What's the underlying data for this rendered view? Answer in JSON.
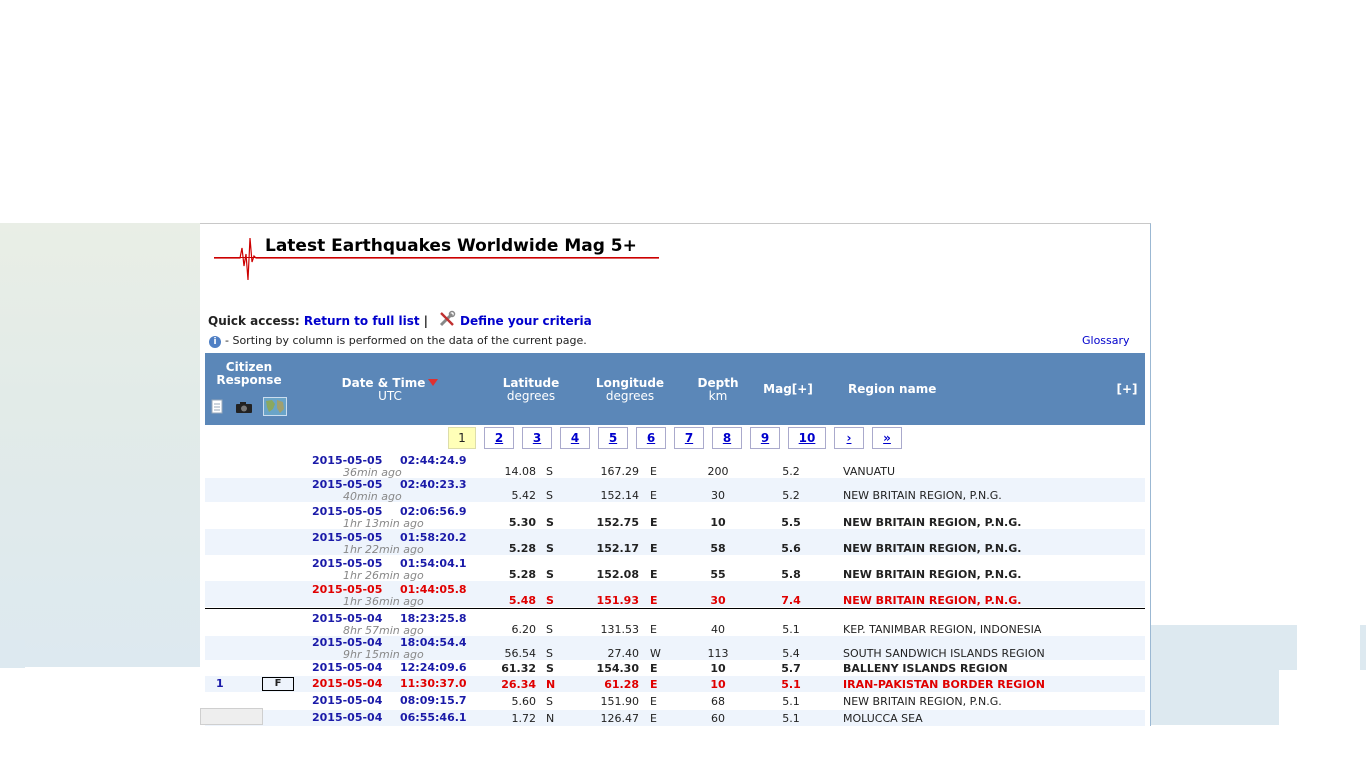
{
  "header": {
    "title": "Latest Earthquakes Worldwide Mag 5+",
    "quick_access_label": "Quick access:",
    "return_link": "Return to full list",
    "separator": "|",
    "criteria_link": "Define your criteria",
    "info_text": "- Sorting by column is performed on the data of the current page.",
    "glossary": "Glossary"
  },
  "table_header": {
    "citizen": "Citizen",
    "response": "Response",
    "datetime": "Date & Time",
    "utc": "UTC",
    "latitude": "Latitude",
    "lat_unit": "degrees",
    "longitude": "Longitude",
    "lon_unit": "degrees",
    "depth": "Depth",
    "depth_unit": "km",
    "mag": "Mag[+]",
    "region": "Region name",
    "more": "[+]"
  },
  "icons": [
    "document-icon",
    "camera-icon",
    "map-icon",
    "wrench-icon",
    "info-icon",
    "sort-desc-icon"
  ],
  "pager": [
    "1",
    "2",
    "3",
    "4",
    "5",
    "6",
    "7",
    "8",
    "9",
    "10",
    "›",
    "»"
  ],
  "rows": [
    {
      "date": "2015-05-05",
      "time": "02:44:24.9",
      "ago": "36min ago",
      "lat": "14.08",
      "ns": "S",
      "lon": "167.29",
      "ew": "E",
      "depth": "200",
      "mag": "5.2",
      "region": "VANUATU",
      "style": "normal"
    },
    {
      "date": "2015-05-05",
      "time": "02:40:23.3",
      "ago": "40min ago",
      "lat": "5.42",
      "ns": "S",
      "lon": "152.14",
      "ew": "E",
      "depth": "30",
      "mag": "5.2",
      "region": "NEW BRITAIN REGION, P.N.G.",
      "style": "normal"
    },
    {
      "date": "2015-05-05",
      "time": "02:06:56.9",
      "ago": "1hr 13min ago",
      "lat": "5.30",
      "ns": "S",
      "lon": "152.75",
      "ew": "E",
      "depth": "10",
      "mag": "5.5",
      "region": "NEW BRITAIN REGION, P.N.G.",
      "style": "bold"
    },
    {
      "date": "2015-05-05",
      "time": "01:58:20.2",
      "ago": "1hr 22min ago",
      "lat": "5.28",
      "ns": "S",
      "lon": "152.17",
      "ew": "E",
      "depth": "58",
      "mag": "5.6",
      "region": "NEW BRITAIN REGION, P.N.G.",
      "style": "bold"
    },
    {
      "date": "2015-05-05",
      "time": "01:54:04.1",
      "ago": "1hr 26min ago",
      "lat": "5.28",
      "ns": "S",
      "lon": "152.08",
      "ew": "E",
      "depth": "55",
      "mag": "5.8",
      "region": "NEW BRITAIN REGION, P.N.G.",
      "style": "bold"
    },
    {
      "date": "2015-05-05",
      "time": "01:44:05.8",
      "ago": "1hr 36min ago",
      "lat": "5.48",
      "ns": "S",
      "lon": "151.93",
      "ew": "E",
      "depth": "30",
      "mag": "7.4",
      "region": "NEW BRITAIN REGION, P.N.G.",
      "style": "red"
    },
    {
      "date": "2015-05-04",
      "time": "18:23:25.8",
      "ago": "8hr 57min ago",
      "lat": "6.20",
      "ns": "S",
      "lon": "131.53",
      "ew": "E",
      "depth": "40",
      "mag": "5.1",
      "region": "KEP. TANIMBAR REGION, INDONESIA",
      "style": "normal"
    },
    {
      "date": "2015-05-04",
      "time": "18:04:54.4",
      "ago": "9hr 15min ago",
      "lat": "56.54",
      "ns": "S",
      "lon": "27.40",
      "ew": "W",
      "depth": "113",
      "mag": "5.4",
      "region": "SOUTH SANDWICH ISLANDS REGION",
      "style": "normal"
    },
    {
      "date": "2015-05-04",
      "time": "12:24:09.6",
      "ago": "",
      "lat": "61.32",
      "ns": "S",
      "lon": "154.30",
      "ew": "E",
      "depth": "10",
      "mag": "5.7",
      "region": "BALLENY ISLANDS REGION",
      "style": "bold"
    },
    {
      "date": "2015-05-04",
      "time": "11:30:37.0",
      "ago": "",
      "lat": "26.34",
      "ns": "N",
      "lon": "61.28",
      "ew": "E",
      "depth": "10",
      "mag": "5.1",
      "region": "IRAN-PAKISTAN BORDER REGION",
      "style": "red",
      "citizen_count": "1",
      "citizen_flag": "F"
    },
    {
      "date": "2015-05-04",
      "time": "08:09:15.7",
      "ago": "",
      "lat": "5.60",
      "ns": "S",
      "lon": "151.90",
      "ew": "E",
      "depth": "68",
      "mag": "5.1",
      "region": "NEW BRITAIN REGION, P.N.G.",
      "style": "normal"
    },
    {
      "date": "2015-05-04",
      "time": "06:55:46.1",
      "ago": "",
      "lat": "1.72",
      "ns": "N",
      "lon": "126.47",
      "ew": "E",
      "depth": "60",
      "mag": "5.1",
      "region": "MOLUCCA SEA",
      "style": "normal"
    }
  ]
}
